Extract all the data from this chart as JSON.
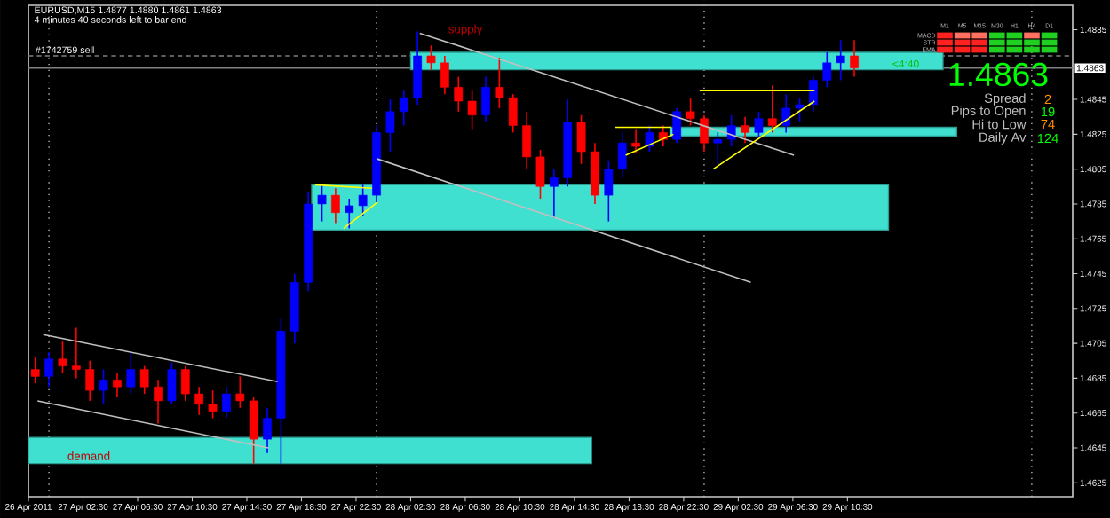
{
  "chart_data": {
    "type": "candlestick",
    "title": "EURUSD,M15  1.4877 1.4880 1.4861 1.4863",
    "subtitle": "4 minutes 40 seconds left to bar end",
    "xlim": [
      "2011-04-26T22:30",
      "2011-04-30T03:00"
    ],
    "ylim": [
      1.4617,
      1.4899
    ],
    "xticks": [
      {
        "value": "2011-04-26T22:30",
        "label": "26 Apr 2011"
      },
      {
        "value": "2011-04-27T02:30",
        "label": "27 Apr 02:30"
      },
      {
        "value": "2011-04-27T06:30",
        "label": "27 Apr 06:30"
      },
      {
        "value": "2011-04-27T10:30",
        "label": "27 Apr 10:30"
      },
      {
        "value": "2011-04-27T14:30",
        "label": "27 Apr 14:30"
      },
      {
        "value": "2011-04-27T18:30",
        "label": "27 Apr 18:30"
      },
      {
        "value": "2011-04-27T22:30",
        "label": "27 Apr 22:30"
      },
      {
        "value": "2011-04-28T02:30",
        "label": "28 Apr 02:30"
      },
      {
        "value": "2011-04-28T06:30",
        "label": "28 Apr 06:30"
      },
      {
        "value": "2011-04-28T10:30",
        "label": "28 Apr 10:30"
      },
      {
        "value": "2011-04-28T14:30",
        "label": "28 Apr 14:30"
      },
      {
        "value": "2011-04-28T18:30",
        "label": "28 Apr 18:30"
      },
      {
        "value": "2011-04-28T22:30",
        "label": "28 Apr 22:30"
      },
      {
        "value": "2011-04-29T02:30",
        "label": "29 Apr 02:30"
      },
      {
        "value": "2011-04-29T06:30",
        "label": "29 Apr 06:30"
      },
      {
        "value": "2011-04-29T10:30",
        "label": "29 Apr 10:30"
      }
    ],
    "yticks": [
      1.4885,
      1.4845,
      1.4825,
      1.4805,
      1.4785,
      1.4765,
      1.4745,
      1.4725,
      1.4705,
      1.4685,
      1.4665,
      1.4645,
      1.4625
    ],
    "ref_lines": [
      {
        "axis": "x",
        "value": "2011-04-27T00:00",
        "color": "#c0c0c0",
        "line_style": "dotted"
      },
      {
        "axis": "x",
        "value": "2011-04-28T00:00",
        "color": "#c0c0c0",
        "line_style": "dotted"
      },
      {
        "axis": "x",
        "value": "2011-04-29T00:00",
        "color": "#c0c0c0",
        "line_style": "dotted"
      },
      {
        "axis": "x",
        "value": "2011-04-30T00:00",
        "color": "#c0c0c0",
        "line_style": "dotted"
      },
      {
        "axis": "y",
        "value": 1.487,
        "label": "#1742759 sell",
        "color": "#808080",
        "line_style": "dashed"
      },
      {
        "axis": "y",
        "value": 1.4863,
        "label": "1.4863",
        "color": "#808080",
        "line_style": "solid"
      }
    ],
    "annotations": [
      "<4:40",
      "1.4863",
      "Spread",
      "2",
      "Pips to Open",
      "19",
      "Hi to Low",
      "74",
      "Daily Av",
      "124",
      "M1",
      "M5",
      "M15",
      "M30",
      "H1",
      "H4",
      "D1",
      "MACD",
      "STR",
      "EMA",
      "demand",
      "supply"
    ],
    "series": [
      {
        "type": "line",
        "color": "#40e0d0",
        "x": [
          "2011-04-26T22:30",
          "2011-04-28T15:45"
        ],
        "values": [
          null,
          null
        ],
        "lower": [
          1.4636,
          1.4636
        ],
        "upper": [
          1.4651,
          1.4651
        ]
      },
      {
        "type": "line",
        "color": "#40e0d0",
        "x": [
          "2011-04-27T19:15",
          "2011-04-29T13:30"
        ],
        "values": [
          null,
          null
        ],
        "lower": [
          1.477,
          1.477
        ],
        "upper": [
          1.4796,
          1.4796
        ]
      },
      {
        "type": "line",
        "color": "#40e0d0",
        "x": [
          "2011-04-28T02:30",
          "2011-04-29T17:30"
        ],
        "values": [
          null,
          null
        ],
        "lower": [
          1.4862,
          1.4862
        ],
        "upper": [
          1.4872,
          1.4872
        ]
      },
      {
        "type": "line",
        "color": "#40e0d0",
        "x": [
          "2011-04-28T21:30",
          "2011-04-29T18:30"
        ],
        "values": [
          null,
          null
        ],
        "lower": [
          1.4824,
          1.4824
        ],
        "upper": [
          1.4829,
          1.4829
        ]
      },
      {
        "type": "candlestick",
        "x": [
          "2011-04-26T23:00",
          "2011-04-27T00:00",
          "2011-04-27T01:00",
          "2011-04-27T02:00",
          "2011-04-27T03:00",
          "2011-04-27T04:00",
          "2011-04-27T05:00",
          "2011-04-27T06:00",
          "2011-04-27T07:00",
          "2011-04-27T08:00",
          "2011-04-27T09:00",
          "2011-04-27T10:00",
          "2011-04-27T11:00",
          "2011-04-27T12:00",
          "2011-04-27T13:00",
          "2011-04-27T14:00",
          "2011-04-27T15:00",
          "2011-04-27T16:00",
          "2011-04-27T17:00",
          "2011-04-27T18:00",
          "2011-04-27T19:00",
          "2011-04-27T20:00",
          "2011-04-27T21:00",
          "2011-04-27T22:00",
          "2011-04-27T23:00",
          "2011-04-28T00:00",
          "2011-04-28T01:00",
          "2011-04-28T02:00",
          "2011-04-28T03:00",
          "2011-04-28T04:00",
          "2011-04-28T05:00",
          "2011-04-28T06:00",
          "2011-04-28T07:00",
          "2011-04-28T08:00",
          "2011-04-28T09:00",
          "2011-04-28T10:00",
          "2011-04-28T11:00",
          "2011-04-28T12:00",
          "2011-04-28T13:00",
          "2011-04-28T14:00",
          "2011-04-28T15:00",
          "2011-04-28T16:00",
          "2011-04-28T17:00",
          "2011-04-28T18:00",
          "2011-04-28T19:00",
          "2011-04-28T20:00",
          "2011-04-28T21:00",
          "2011-04-28T22:00",
          "2011-04-28T23:00",
          "2011-04-29T00:00",
          "2011-04-29T01:00",
          "2011-04-29T02:00",
          "2011-04-29T03:00",
          "2011-04-29T04:00",
          "2011-04-29T05:00",
          "2011-04-29T06:00",
          "2011-04-29T07:00",
          "2011-04-29T08:00",
          "2011-04-29T09:00",
          "2011-04-29T10:00",
          "2011-04-29T11:00"
        ],
        "ohlc": [
          [
            1.469,
            1.4697,
            1.4682,
            1.4686
          ],
          [
            1.4686,
            1.47,
            1.468,
            1.4696
          ],
          [
            1.4696,
            1.4706,
            1.4688,
            1.4692
          ],
          [
            1.4692,
            1.4714,
            1.4685,
            1.469
          ],
          [
            1.469,
            1.4695,
            1.4672,
            1.4678
          ],
          [
            1.4678,
            1.469,
            1.467,
            1.4684
          ],
          [
            1.4684,
            1.4688,
            1.4674,
            1.468
          ],
          [
            1.468,
            1.47,
            1.4676,
            1.469
          ],
          [
            1.469,
            1.4692,
            1.4676,
            1.468
          ],
          [
            1.468,
            1.4684,
            1.4659,
            1.4672
          ],
          [
            1.4672,
            1.4694,
            1.467,
            1.469
          ],
          [
            1.469,
            1.4692,
            1.4672,
            1.4676
          ],
          [
            1.4676,
            1.468,
            1.4664,
            1.467
          ],
          [
            1.467,
            1.4678,
            1.4662,
            1.4666
          ],
          [
            1.4666,
            1.468,
            1.4662,
            1.4676
          ],
          [
            1.4676,
            1.4686,
            1.4668,
            1.4672
          ],
          [
            1.4672,
            1.4674,
            1.4636,
            1.465
          ],
          [
            1.465,
            1.4668,
            1.4642,
            1.4662
          ],
          [
            1.4662,
            1.472,
            1.4636,
            1.4712
          ],
          [
            1.4712,
            1.4745,
            1.4705,
            1.474
          ],
          [
            1.474,
            1.4792,
            1.4735,
            1.4785
          ],
          [
            1.4785,
            1.4796,
            1.4775,
            1.479
          ],
          [
            1.479,
            1.4794,
            1.4774,
            1.478
          ],
          [
            1.478,
            1.4788,
            1.4771,
            1.4784
          ],
          [
            1.4784,
            1.4796,
            1.4778,
            1.479
          ],
          [
            1.479,
            1.483,
            1.4786,
            1.4826
          ],
          [
            1.4826,
            1.4845,
            1.4815,
            1.4838
          ],
          [
            1.4838,
            1.485,
            1.483,
            1.4846
          ],
          [
            1.4846,
            1.4884,
            1.4842,
            1.487
          ],
          [
            1.487,
            1.4876,
            1.4862,
            1.4866
          ],
          [
            1.4866,
            1.487,
            1.4848,
            1.4852
          ],
          [
            1.4852,
            1.4858,
            1.4838,
            1.4844
          ],
          [
            1.4844,
            1.485,
            1.4828,
            1.4836
          ],
          [
            1.4836,
            1.4858,
            1.4832,
            1.4852
          ],
          [
            1.4852,
            1.4869,
            1.484,
            1.4846
          ],
          [
            1.4846,
            1.4848,
            1.4826,
            1.483
          ],
          [
            1.483,
            1.4838,
            1.4805,
            1.4812
          ],
          [
            1.4812,
            1.4816,
            1.4788,
            1.4795
          ],
          [
            1.4795,
            1.4805,
            1.4777,
            1.48
          ],
          [
            1.48,
            1.4845,
            1.4795,
            1.4832
          ],
          [
            1.4832,
            1.4836,
            1.4808,
            1.4815
          ],
          [
            1.4815,
            1.482,
            1.4785,
            1.479
          ],
          [
            1.479,
            1.481,
            1.4775,
            1.4805
          ],
          [
            1.4805,
            1.4826,
            1.48,
            1.482
          ],
          [
            1.482,
            1.4828,
            1.4814,
            1.4818
          ],
          [
            1.4818,
            1.483,
            1.4815,
            1.4826
          ],
          [
            1.4826,
            1.483,
            1.4818,
            1.4822
          ],
          [
            1.4822,
            1.484,
            1.482,
            1.4838
          ],
          [
            1.4838,
            1.4846,
            1.483,
            1.4834
          ],
          [
            1.4834,
            1.4836,
            1.4815,
            1.482
          ],
          [
            1.482,
            1.4826,
            1.4807,
            1.4822
          ],
          [
            1.4822,
            1.4836,
            1.4818,
            1.483
          ],
          [
            1.483,
            1.4835,
            1.482,
            1.4826
          ],
          [
            1.4826,
            1.4838,
            1.4822,
            1.4834
          ],
          [
            1.4834,
            1.4853,
            1.4826,
            1.483
          ],
          [
            1.483,
            1.4848,
            1.4826,
            1.484
          ],
          [
            1.484,
            1.4846,
            1.4832,
            1.4842
          ],
          [
            1.4842,
            1.4858,
            1.4838,
            1.4856
          ],
          [
            1.4856,
            1.4872,
            1.4852,
            1.4866
          ],
          [
            1.4866,
            1.4879,
            1.4856,
            1.487
          ],
          [
            1.487,
            1.4879,
            1.4858,
            1.4863
          ]
        ],
        "colors": [
          "#ff0000",
          "#0000ff",
          "#ff0000",
          "#ff0000",
          "#ff0000",
          "#0000ff",
          "#ff0000",
          "#0000ff",
          "#ff0000",
          "#ff0000",
          "#0000ff",
          "#ff0000",
          "#ff0000",
          "#ff0000",
          "#0000ff",
          "#ff0000",
          "#ff0000",
          "#0000ff",
          "#0000ff",
          "#0000ff",
          "#0000ff",
          "#0000ff",
          "#ff0000",
          "#0000ff",
          "#0000ff",
          "#0000ff",
          "#0000ff",
          "#0000ff",
          "#0000ff",
          "#ff0000",
          "#ff0000",
          "#ff0000",
          "#ff0000",
          "#0000ff",
          "#ff0000",
          "#ff0000",
          "#ff0000",
          "#ff0000",
          "#0000ff",
          "#0000ff",
          "#ff0000",
          "#ff0000",
          "#0000ff",
          "#0000ff",
          "#ff0000",
          "#0000ff",
          "#ff0000",
          "#0000ff",
          "#ff0000",
          "#ff0000",
          "#0000ff",
          "#0000ff",
          "#ff0000",
          "#0000ff",
          "#ff0000",
          "#0000ff",
          "#0000ff",
          "#0000ff",
          "#0000ff",
          "#0000ff",
          "#ff0000"
        ]
      },
      {
        "type": "line",
        "color": "#c0c0c0",
        "x": [
          "2011-04-26T23:35",
          "2011-04-27T16:45"
        ],
        "values": [
          1.471,
          1.4683
        ]
      },
      {
        "type": "line",
        "color": "#c0c0c0",
        "x": [
          "2011-04-26T23:10",
          "2011-04-27T16:05"
        ],
        "values": [
          1.4672,
          1.4645
        ]
      },
      {
        "type": "line",
        "color": "#c0c0c0",
        "x": [
          "2011-04-28T03:10",
          "2011-04-29T06:35"
        ],
        "values": [
          1.4883,
          1.4813
        ]
      },
      {
        "type": "line",
        "color": "#c0c0c0",
        "x": [
          "2011-04-28T00:00",
          "2011-04-29T03:25"
        ],
        "values": [
          1.4811,
          1.474
        ]
      },
      {
        "type": "line",
        "color": "#ffff00",
        "x": [
          "2011-04-27T19:30",
          "2011-04-27T23:40"
        ],
        "values": [
          1.4796,
          1.4794
        ]
      },
      {
        "type": "line",
        "color": "#ffff00",
        "x": [
          "2011-04-27T21:35",
          "2011-04-28T00:05"
        ],
        "values": [
          1.4771,
          1.4786
        ]
      },
      {
        "type": "line",
        "color": "#ffff00",
        "x": [
          "2011-04-28T17:30",
          "2011-04-28T21:35"
        ],
        "values": [
          1.4829,
          1.4829
        ]
      },
      {
        "type": "line",
        "color": "#ffff00",
        "x": [
          "2011-04-28T18:15",
          "2011-04-28T21:45"
        ],
        "values": [
          1.4813,
          1.4825
        ]
      },
      {
        "type": "line",
        "color": "#ffff00",
        "x": [
          "2011-04-28T23:40",
          "2011-04-29T08:05"
        ],
        "values": [
          1.485,
          1.485
        ]
      },
      {
        "type": "line",
        "color": "#ffff00",
        "x": [
          "2011-04-29T00:40",
          "2011-04-29T08:05"
        ],
        "values": [
          1.4805,
          1.4844
        ]
      }
    ]
  }
}
